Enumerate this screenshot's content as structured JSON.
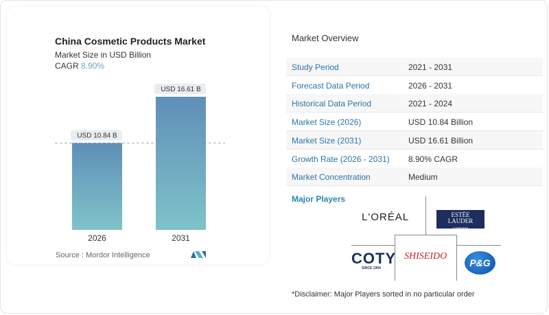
{
  "chart_data": {
    "type": "bar",
    "title": "China Cosmetic Products Market",
    "subtitle": "Market Size in USD Billion",
    "cagr_label": "CAGR",
    "cagr_value": "8.90%",
    "categories": [
      "2026",
      "2031"
    ],
    "values": [
      10.84,
      16.61
    ],
    "data_labels": [
      "USD 10.84 B",
      "USD 16.61 B"
    ],
    "ylim": [
      0,
      18
    ],
    "colors": {
      "bar_top": "#5f8fb8",
      "bar_bottom": "#7fc3c9"
    },
    "source": "Source :  Mordor Intelligence"
  },
  "overview": {
    "title": "Market Overview",
    "rows": [
      {
        "label": "Study Period",
        "value": "2021 - 2031"
      },
      {
        "label": "Forecast Data Period",
        "value": "2026 - 2031"
      },
      {
        "label": "Historical Data Period",
        "value": "2021 - 2024"
      },
      {
        "label": "Market Size (2026)",
        "value": "USD 10.84 Billion"
      },
      {
        "label": "Market Size (2031)",
        "value": "USD 16.61 Billion"
      },
      {
        "label": "Growth Rate (2026 - 2031)",
        "value": "8.90% CAGR"
      },
      {
        "label": "Market Concentration",
        "value": "Medium"
      }
    ]
  },
  "players": {
    "title": "Major Players",
    "logos": [
      "L'ORÉAL",
      "ESTĒE LAUDER COMPANIES",
      "COTY SINCE 1904",
      "SHISEIDO",
      "P&G"
    ],
    "disclaimer": "*Disclaimer: Major Players sorted in no particular order"
  }
}
